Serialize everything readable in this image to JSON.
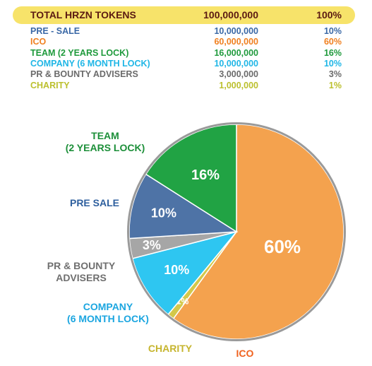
{
  "table": {
    "header": {
      "label": "TOTAL HRZN TOKENS",
      "amount": "100,000,000",
      "percent": "100%"
    },
    "rows": [
      {
        "label": "PRE - SALE",
        "amount": "10,000,000",
        "percent": "10%",
        "color": "#3a68a6"
      },
      {
        "label": "ICO",
        "amount": "60,000,000",
        "percent": "60%",
        "color": "#f08020"
      },
      {
        "label": "TEAM (2 YEARS LOCK)",
        "amount": "16,000,000",
        "percent": "16%",
        "color": "#1f9a3c"
      },
      {
        "label": "COMPANY (6 MONTH LOCK)",
        "amount": "10,000,000",
        "percent": "10%",
        "color": "#1fb6e6"
      },
      {
        "label": "PR & BOUNTY ADVISERS",
        "amount": "3,000,000",
        "percent": "3%",
        "color": "#6b6b6b"
      },
      {
        "label": "CHARITY",
        "amount": "1,000,000",
        "percent": "1%",
        "color": "#bcc02e"
      }
    ]
  },
  "chart_data": {
    "type": "pie",
    "slices": [
      {
        "name": "ICO",
        "value": 60,
        "label": "60%",
        "color": "#f4a24e",
        "legend_lines": [
          "ICO"
        ],
        "legend_color": "#f0621e"
      },
      {
        "name": "CHARITY",
        "value": 1,
        "label": "1%",
        "color": "#d3c84a",
        "legend_lines": [
          "CHARITY"
        ],
        "legend_color": "#c6b52e"
      },
      {
        "name": "COMPANY (6 MONTH LOCK)",
        "value": 10,
        "label": "10%",
        "color": "#2ec6f1",
        "legend_lines": [
          "COMPANY",
          "(6 MONTH LOCK)"
        ],
        "legend_color": "#1ca6e0"
      },
      {
        "name": "PR & BOUNTY ADVISERS",
        "value": 3,
        "label": "3%",
        "color": "#a6a6a6",
        "legend_lines": [
          "PR & BOUNTY",
          "ADVISERS"
        ],
        "legend_color": "#6f6f6f"
      },
      {
        "name": "PRE SALE",
        "value": 10,
        "label": "10%",
        "color": "#4e73a6",
        "legend_lines": [
          "PRE SALE"
        ],
        "legend_color": "#2e5f9e"
      },
      {
        "name": "TEAM (2 YEARS LOCK)",
        "value": 16,
        "label": "16%",
        "color": "#21a344",
        "legend_lines": [
          "TEAM",
          "(2 YEARS LOCK)"
        ],
        "legend_color": "#1c8f39"
      }
    ],
    "border_color": "#9a9a9a"
  }
}
